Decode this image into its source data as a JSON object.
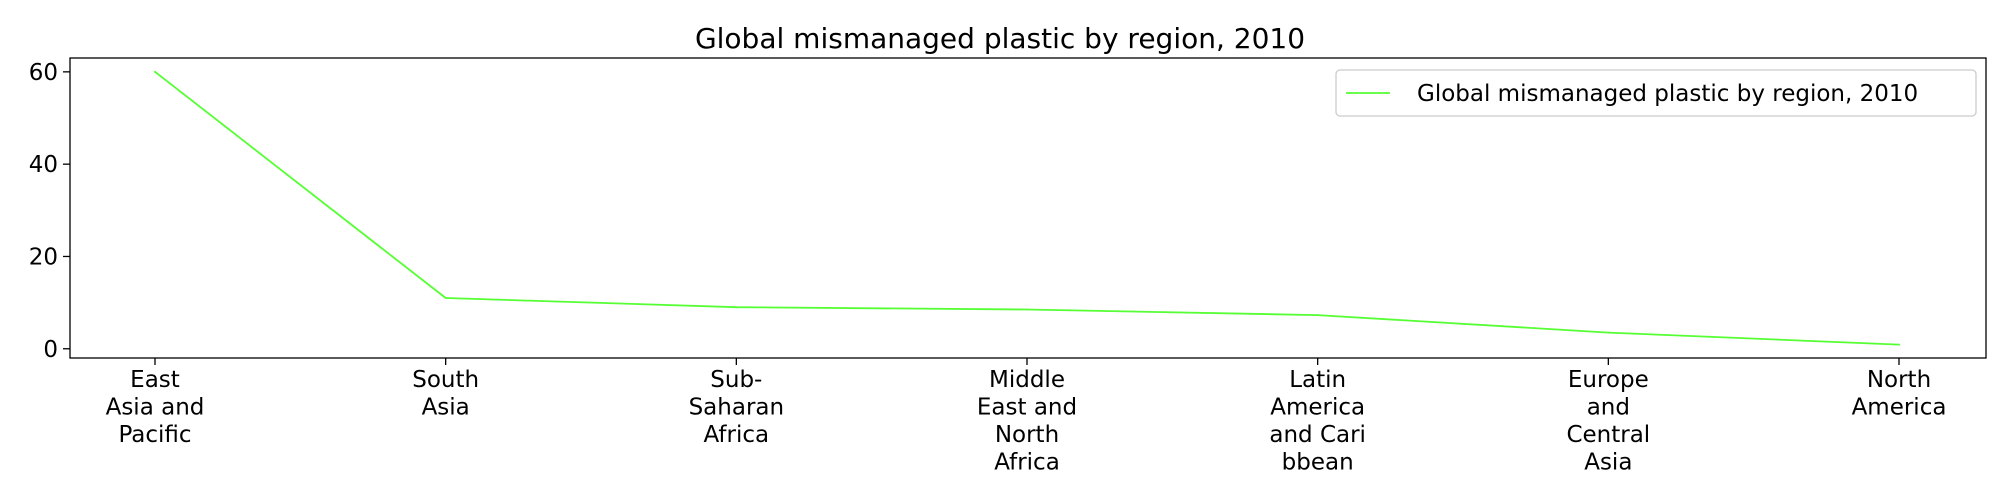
{
  "chart_data": {
    "type": "line",
    "title": "Global mismanaged plastic by region, 2010",
    "xlabel": "",
    "ylabel": "",
    "categories": [
      [
        "East",
        "Asia and",
        "Pacific"
      ],
      [
        "South",
        "Asia"
      ],
      [
        "Sub-",
        "Saharan",
        "Africa"
      ],
      [
        "Middle",
        "East and",
        "North",
        "Africa"
      ],
      [
        "Latin",
        "America",
        "and Cari",
        "bbean"
      ],
      [
        "Europe",
        "and",
        "Central",
        "Asia"
      ],
      [
        "North",
        "America"
      ]
    ],
    "series": [
      {
        "name": "Global mismanaged plastic by region, 2010",
        "color": "#55ff33",
        "values": [
          60,
          11,
          9,
          8.5,
          7.3,
          3.5,
          0.9
        ]
      }
    ],
    "ylim": [
      -2,
      63
    ],
    "yticks": [
      0,
      20,
      40,
      60
    ],
    "grid": false,
    "legend_position": "top-right"
  }
}
